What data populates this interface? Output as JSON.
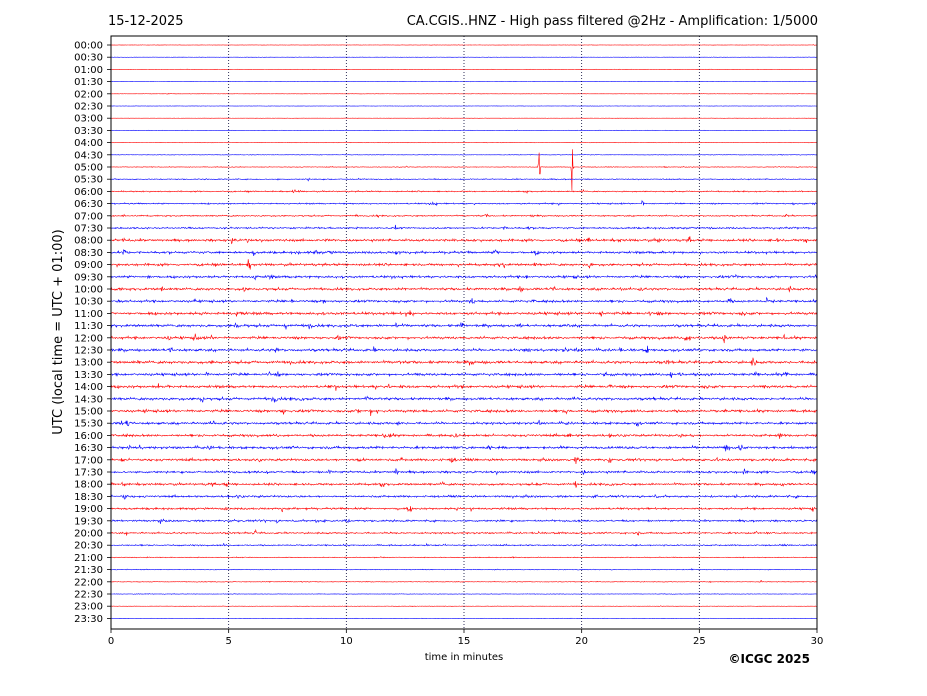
{
  "header": {
    "date": "15-12-2025",
    "title": "CA.CGIS..HNZ - High pass filtered @2Hz - Amplification: 1/5000"
  },
  "footer": {
    "copyright": "©ICGC 2025"
  },
  "chart_data": {
    "type": "line",
    "title": "CA.CGIS..HNZ - High pass filtered @2Hz - Amplification: 1/5000",
    "xlabel": "time in minutes",
    "ylabel": "UTC (local time = UTC + 01:00)",
    "xlim": [
      0,
      30
    ],
    "x_ticks": [
      0,
      5,
      10,
      15,
      20,
      25,
      30
    ],
    "x_tick_labels": [
      "0",
      "5",
      "10",
      "15",
      "20",
      "25",
      "30"
    ],
    "y_tick_labels": [
      "00:00",
      "00:30",
      "01:00",
      "01:30",
      "02:00",
      "02:30",
      "03:00",
      "03:30",
      "04:00",
      "04:30",
      "05:00",
      "05:30",
      "06:00",
      "06:30",
      "07:00",
      "07:30",
      "08:00",
      "08:30",
      "09:00",
      "09:30",
      "10:00",
      "10:30",
      "11:00",
      "11:30",
      "12:00",
      "12:30",
      "13:00",
      "13:30",
      "14:00",
      "14:30",
      "15:00",
      "15:30",
      "16:00",
      "16:30",
      "17:00",
      "17:30",
      "18:00",
      "18:30",
      "19:00",
      "19:30",
      "20:00",
      "20:30",
      "21:00",
      "21:30",
      "22:00",
      "22:30",
      "23:00",
      "23:30"
    ],
    "vertical_gridlines": [
      5,
      10,
      15,
      20,
      25
    ],
    "grid": "dotted vertical",
    "series_colors": [
      "#ff0000",
      "#0000ff"
    ],
    "trace_noise_level": [
      0.05,
      0.05,
      0.05,
      0.04,
      0.05,
      0.05,
      0.04,
      0.05,
      0.06,
      0.08,
      0.1,
      0.15,
      0.18,
      0.2,
      0.2,
      0.25,
      0.35,
      0.35,
      0.35,
      0.35,
      0.35,
      0.35,
      0.4,
      0.38,
      0.38,
      0.38,
      0.4,
      0.38,
      0.4,
      0.38,
      0.38,
      0.35,
      0.35,
      0.38,
      0.35,
      0.32,
      0.32,
      0.3,
      0.3,
      0.28,
      0.25,
      0.2,
      0.12,
      0.1,
      0.1,
      0.08,
      0.06,
      0.05
    ],
    "events": [
      {
        "row": 10,
        "minute": 18.2,
        "amplitude": 9.0
      },
      {
        "row": 10,
        "minute": 19.6,
        "amplitude": 9.0
      },
      {
        "row": 13,
        "minute": 22.6,
        "amplitude": 1.5
      },
      {
        "row": 31,
        "minute": 18.2,
        "amplitude": 0.8
      },
      {
        "row": 44,
        "minute": 27.6,
        "amplitude": 0.6
      },
      {
        "row": 38,
        "minute": 15.3,
        "amplitude": 0.7
      },
      {
        "row": 15,
        "minute": 12.1,
        "amplitude": 0.6
      },
      {
        "row": 22,
        "minute": 30.0,
        "amplitude": 0.5
      }
    ]
  }
}
